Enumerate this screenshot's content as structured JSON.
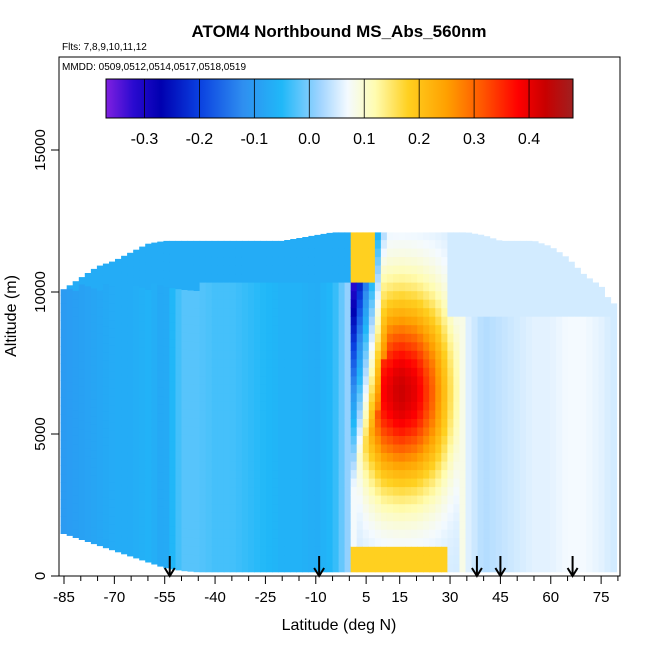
{
  "chart_data": {
    "type": "heatmap",
    "title": "ATOM4 Northbound MS_Abs_560nm",
    "flights_note": "Flts: 7,8,9,10,11,12",
    "dates_note": "MMDD: 0509,0512,0514,0517,0518,0519",
    "xlabel": "Latitude (deg N)",
    "ylabel": "Altitude (m)",
    "xlim": [
      -87,
      83
    ],
    "ylim": [
      0,
      18500
    ],
    "x_ticks": [
      -85,
      -70,
      -55,
      -40,
      -25,
      -10,
      5,
      15,
      30,
      45,
      60,
      75
    ],
    "x_minor_ticks": [
      -80,
      -75,
      -65,
      -60,
      -50,
      -45,
      -35,
      -30,
      -20,
      -15,
      -5,
      0,
      10,
      20,
      25,
      35,
      40,
      50,
      55,
      65,
      70,
      80
    ],
    "y_ticks": [
      0,
      5000,
      10000,
      15000
    ],
    "colorbar": {
      "range": [
        -0.37,
        0.48
      ],
      "ticks": [
        -0.3,
        -0.2,
        -0.1,
        0.0,
        0.1,
        0.2,
        0.3,
        0.4
      ],
      "tick_labels": [
        "-0.3",
        "-0.2",
        "-0.1",
        "0.0",
        "0.1",
        "0.2",
        "0.3",
        "0.4"
      ],
      "stops": [
        [
          -0.37,
          "#8020e0"
        ],
        [
          -0.32,
          "#2a0ad0"
        ],
        [
          -0.27,
          "#0000b0"
        ],
        [
          -0.2,
          "#0a40e0"
        ],
        [
          -0.12,
          "#2f8ff0"
        ],
        [
          -0.05,
          "#20b8f8"
        ],
        [
          0.02,
          "#a0d4ff"
        ],
        [
          0.07,
          "#f4faff"
        ],
        [
          0.12,
          "#fffcb0"
        ],
        [
          0.18,
          "#ffd020"
        ],
        [
          0.25,
          "#ffa000"
        ],
        [
          0.32,
          "#ff5000"
        ],
        [
          0.38,
          "#ff0000"
        ],
        [
          0.43,
          "#c80000"
        ],
        [
          0.48,
          "#a02020"
        ]
      ]
    },
    "flight_markers_lat": [
      -53.5,
      -9,
      38,
      45,
      66.5
    ],
    "profiles": [
      {
        "lat": -85,
        "base": 1500,
        "top": 10100,
        "mid": -0.1
      },
      {
        "lat": -80,
        "base": 1300,
        "top": 10500,
        "mid": -0.09
      },
      {
        "lat": -75,
        "base": 1100,
        "top": 10900,
        "mid": -0.08
      },
      {
        "lat": -70,
        "base": 900,
        "top": 11100,
        "mid": -0.07
      },
      {
        "lat": -65,
        "base": 700,
        "top": 11400,
        "mid": -0.07
      },
      {
        "lat": -60,
        "base": 500,
        "top": 11700,
        "mid": -0.06
      },
      {
        "lat": -55,
        "base": 300,
        "top": 11800,
        "mid": -0.08
      },
      {
        "lat": -50,
        "base": 200,
        "top": 11800,
        "mid": -0.02
      },
      {
        "lat": -45,
        "base": 150,
        "top": 11800,
        "mid": -0.02
      },
      {
        "lat": -40,
        "base": 150,
        "top": 11800,
        "mid": -0.03
      },
      {
        "lat": -35,
        "base": 150,
        "top": 11800,
        "mid": -0.03
      },
      {
        "lat": -30,
        "base": 150,
        "top": 11800,
        "mid": -0.04
      },
      {
        "lat": -25,
        "base": 150,
        "top": 11800,
        "mid": -0.05
      },
      {
        "lat": -20,
        "base": 150,
        "top": 11800,
        "mid": -0.06
      },
      {
        "lat": -15,
        "base": 150,
        "top": 11900,
        "mid": -0.06
      },
      {
        "lat": -10,
        "base": 150,
        "top": 12000,
        "mid": -0.07
      },
      {
        "lat": -5,
        "base": 150,
        "top": 12100,
        "mid": -0.05
      },
      {
        "lat": 0,
        "base": 150,
        "top": 12100,
        "mid": 0.02
      },
      {
        "lat": 5,
        "base": 150,
        "top": 12100,
        "mid": 0.22
      },
      {
        "lat": 10,
        "base": 150,
        "top": 12100,
        "mid": 0.38
      },
      {
        "lat": 15,
        "base": 150,
        "top": 12100,
        "mid": 0.43
      },
      {
        "lat": 20,
        "base": 150,
        "top": 12100,
        "mid": 0.4
      },
      {
        "lat": 25,
        "base": 150,
        "top": 12100,
        "mid": 0.3
      },
      {
        "lat": 30,
        "base": 150,
        "top": 12100,
        "mid": 0.16
      },
      {
        "lat": 35,
        "base": 150,
        "top": 12100,
        "mid": 0.06
      },
      {
        "lat": 40,
        "base": 150,
        "top": 12000,
        "mid": 0.03
      },
      {
        "lat": 45,
        "base": 150,
        "top": 11800,
        "mid": 0.04
      },
      {
        "lat": 50,
        "base": 150,
        "top": 11800,
        "mid": 0.05
      },
      {
        "lat": 55,
        "base": 150,
        "top": 11800,
        "mid": 0.06
      },
      {
        "lat": 60,
        "base": 150,
        "top": 11600,
        "mid": 0.06
      },
      {
        "lat": 65,
        "base": 150,
        "top": 11200,
        "mid": 0.07
      },
      {
        "lat": 70,
        "base": 150,
        "top": 10600,
        "mid": 0.07
      },
      {
        "lat": 75,
        "base": 150,
        "top": 10200,
        "mid": 0.06
      },
      {
        "lat": 78,
        "base": 150,
        "top": 9600,
        "mid": 0.05
      }
    ]
  }
}
